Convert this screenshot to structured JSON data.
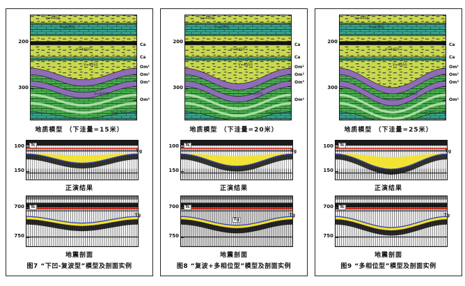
{
  "colors": {
    "yellow_green": "#c9d94e",
    "teal": "#3fae96",
    "purple": "#8e6cb8",
    "green": "#4eb554",
    "light_green": "#b7e3ae",
    "coal_black": "#141414",
    "red_horizon": "#c81505",
    "blue_horizon": "#3646b5",
    "yellow_fill": "#f2e32b",
    "border": "#222222"
  },
  "panels": [
    {
      "figure_caption": "图7 “下凹-复波型”模型及剖面实例",
      "model": {
        "caption": "地质模型 （下洼量=15米）",
        "sag_m": 15,
        "depth_ticks": [
          "200",
          "300"
        ],
        "strat_labels": [
          "Ca",
          "Ca",
          "Om¹",
          "Om²",
          "Om³",
          "Om⁴"
        ],
        "velocities": [
          "V=4400",
          "V=4200",
          "V=4450",
          "V=4550",
          "V=6000",
          "V=6700"
        ]
      },
      "forward": {
        "caption": "正演结果",
        "ticks": [
          "100",
          "150"
        ],
        "horizon_red": "Tc",
        "horizon_blue": "Tg"
      },
      "profile": {
        "caption": "地震剖面",
        "ticks": [
          "700",
          "750"
        ],
        "horizon_red": "Tc",
        "horizon_blue": "Tg",
        "center_label": ""
      }
    },
    {
      "figure_caption": "图8 “复波+多相位型”模型及剖面实例",
      "model": {
        "caption": "地质模型 （下洼量=20米）",
        "sag_m": 20,
        "depth_ticks": [
          "200",
          "300"
        ],
        "strat_labels": [
          "Ca",
          "Ca",
          "Om¹",
          "Om²",
          "Om³",
          "Om⁴"
        ],
        "velocities": [
          "V=4400",
          "V=4200",
          "V=4450",
          "V=4550",
          "V=6000",
          "V=6700"
        ]
      },
      "forward": {
        "caption": "正演结果",
        "ticks": [
          "100",
          "150"
        ],
        "horizon_red": "Tc",
        "horizon_blue": "Tg"
      },
      "profile": {
        "caption": "地震剖面",
        "ticks": [
          "700",
          "750"
        ],
        "horizon_red": "Tc",
        "horizon_blue": "Tg",
        "center_label": "Tg"
      }
    },
    {
      "figure_caption": "图9 “多相位型”模型及剖面实例",
      "model": {
        "caption": "地质模型 （下洼量=25米）",
        "sag_m": 25,
        "depth_ticks": [
          "200",
          "300"
        ],
        "strat_labels": [
          "Ca",
          "Ca",
          "Om¹",
          "Om²",
          "Om³",
          "Om⁴"
        ],
        "velocities": [
          "V=4400",
          "V=4200",
          "V=4450",
          "V=4550",
          "V=6000",
          "V=6700"
        ]
      },
      "forward": {
        "caption": "正演结果",
        "ticks": [
          "100",
          "150"
        ],
        "horizon_red": "Tc",
        "horizon_blue": "Tg"
      },
      "profile": {
        "caption": "地震剖面",
        "ticks": [
          "700",
          "750"
        ],
        "horizon_red": "Tc",
        "horizon_blue": "Tg",
        "center_label": ""
      }
    }
  ]
}
